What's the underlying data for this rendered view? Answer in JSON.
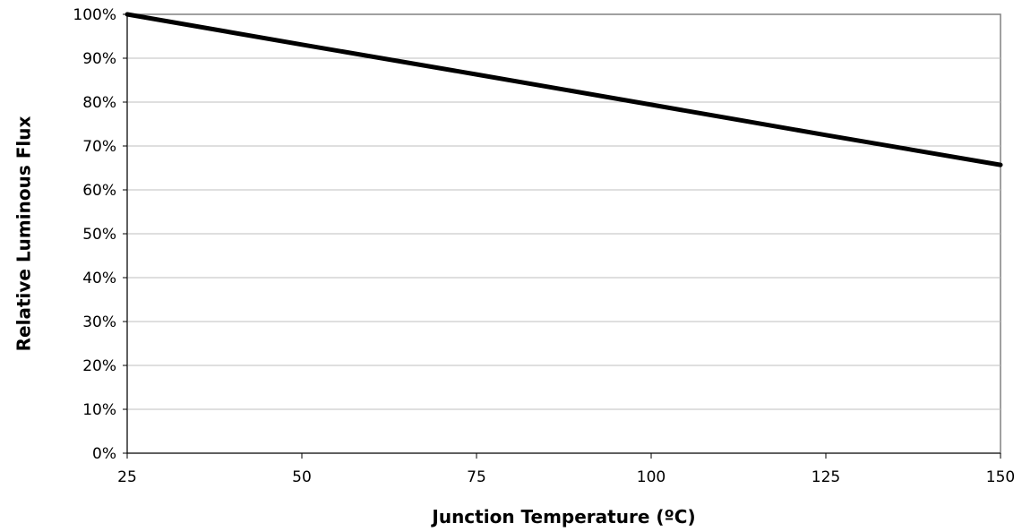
{
  "chart_data": {
    "type": "line",
    "title": "",
    "xlabel": "Junction Temperature (ºC)",
    "ylabel": "Relative Luminous Flux",
    "xlim": [
      25,
      150
    ],
    "ylim": [
      0,
      100
    ],
    "x_ticks": [
      25,
      50,
      75,
      100,
      125,
      150
    ],
    "x_tick_labels": [
      "25",
      "50",
      "75",
      "100",
      "125",
      "150"
    ],
    "y_ticks": [
      0,
      10,
      20,
      30,
      40,
      50,
      60,
      70,
      80,
      90,
      100
    ],
    "y_tick_labels": [
      "0%",
      "10%",
      "20%",
      "30%",
      "40%",
      "50%",
      "60%",
      "70%",
      "80%",
      "90%",
      "100%"
    ],
    "grid": "horizontal",
    "legend": "none",
    "series": [
      {
        "color": "#000000",
        "x": [
          25,
          50,
          75,
          100,
          125,
          150
        ],
        "y": [
          100,
          93.1,
          86.3,
          79.4,
          72.5,
          65.7
        ]
      }
    ]
  }
}
